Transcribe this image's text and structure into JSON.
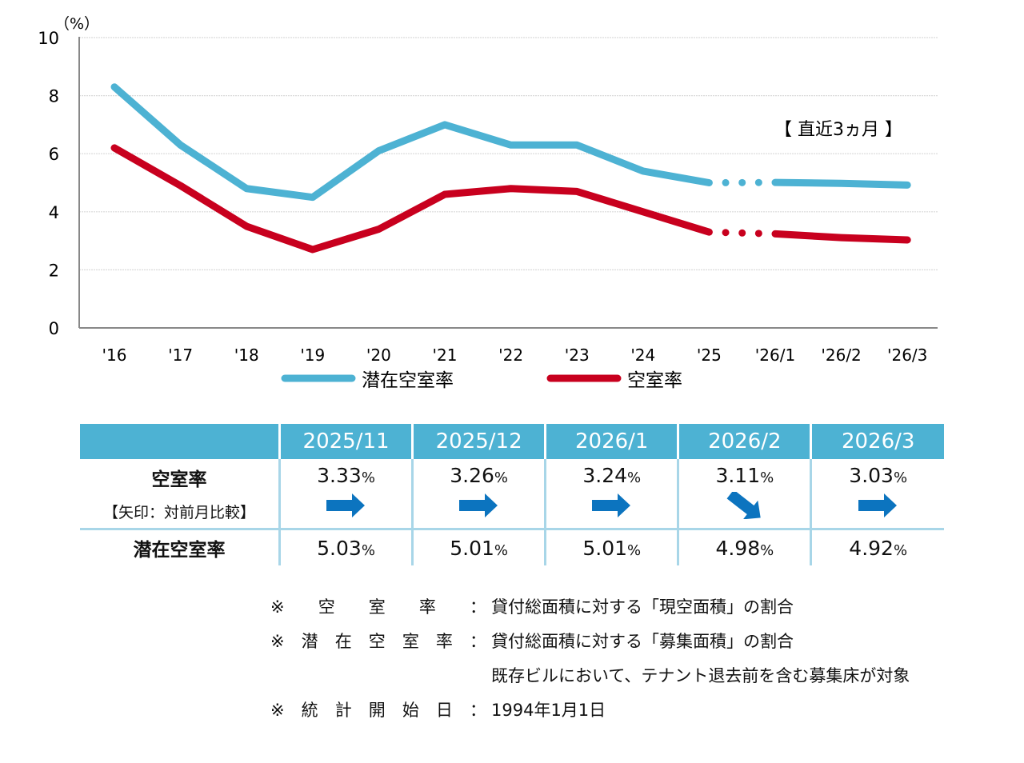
{
  "chart_data": {
    "type": "line",
    "title": "",
    "ylabel": "（%）",
    "xlabel": "",
    "ylim": [
      0,
      10
    ],
    "yticks": [
      0,
      2,
      4,
      6,
      8,
      10
    ],
    "grid": true,
    "categories": [
      "'16",
      "'17",
      "'18",
      "'19",
      "'20",
      "'21",
      "'22",
      "'23",
      "'24",
      "'25",
      "'26/1",
      "'26/2",
      "'26/3"
    ],
    "annotation": "【 直近3ヵ月 】",
    "series": [
      {
        "name": "潜在空室率",
        "color": "#4db2d3",
        "values": [
          8.3,
          6.3,
          4.8,
          4.5,
          6.1,
          7.0,
          6.3,
          6.3,
          5.4,
          5.0,
          5.01,
          4.98,
          4.92
        ]
      },
      {
        "name": "空室率",
        "color": "#c8001e",
        "values": [
          6.2,
          4.9,
          3.5,
          2.7,
          3.4,
          4.6,
          4.8,
          4.7,
          4.0,
          3.3,
          3.24,
          3.11,
          3.03
        ]
      }
    ],
    "dotted_segment": [
      "'25",
      "'26/1"
    ],
    "legend_placement": "bottom-center"
  },
  "table": {
    "headers": [
      "",
      "2025/11",
      "2025/12",
      "2026/1",
      "2026/2",
      "2026/3"
    ],
    "vacancy_label": "空室率",
    "arrow_note": "【矢印：対前月比較】",
    "potential_label": "潜在空室率",
    "percent_sign": "%",
    "vacancy": [
      "3.33",
      "3.26",
      "3.24",
      "3.11",
      "3.03"
    ],
    "arrows": [
      "right",
      "right",
      "right",
      "down-right",
      "right"
    ],
    "potential": [
      "5.03",
      "5.01",
      "5.01",
      "4.98",
      "4.92"
    ],
    "arrow_color": "#0c74bf"
  },
  "notes": [
    {
      "mark": "※",
      "key": [
        "空",
        "室",
        "率"
      ],
      "sep": "：",
      "text": "貸付総面積に対する「現空面積」の割合"
    },
    {
      "mark": "※",
      "key": [
        "潜",
        "在",
        "空",
        "室",
        "率"
      ],
      "sep": "：",
      "text": "貸付総面積に対する「募集面積」の割合"
    },
    {
      "mark": "",
      "key": [],
      "sep": "",
      "text": "既存ビルにおいて、テナント退去前を含む募集床が対象"
    },
    {
      "mark": "※",
      "key": [
        "統",
        "計",
        "開",
        "始",
        "日"
      ],
      "sep": "：",
      "text": "1994年1月1日"
    }
  ]
}
